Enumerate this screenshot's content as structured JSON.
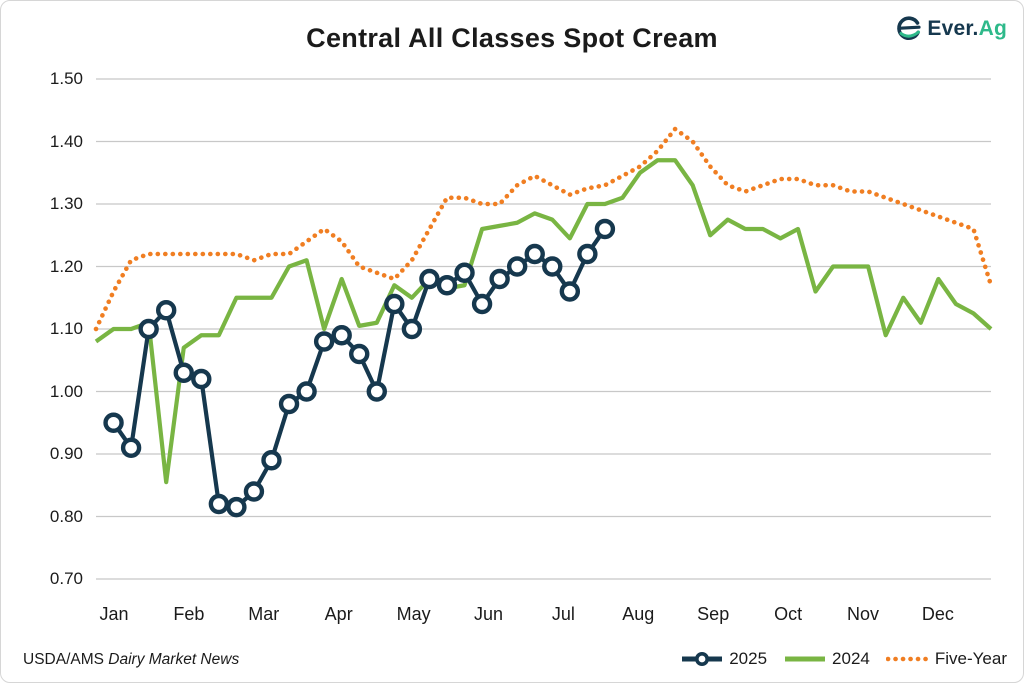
{
  "header": {
    "title": "Central All Classes Spot Cream",
    "logo": {
      "prefix": "Ever.",
      "suffix": "Ag",
      "navy": "#16384E",
      "teal": "#2EB98A"
    }
  },
  "footer": {
    "source_prefix": "USDA/AMS",
    "source_name": "Dairy Market News"
  },
  "colors": {
    "navy_2025": "#16384E",
    "green_2024": "#79B543",
    "orange_five_year": "#F07E22",
    "gridline": "#C8C8C8",
    "text": "#1B1B1B"
  },
  "chart_data": {
    "type": "line",
    "title": "Central All Classes Spot Cream",
    "xlabel": "",
    "ylabel": "",
    "ylim": [
      0.7,
      1.5
    ],
    "grid": "horizontal",
    "legend_position": "bottom-right",
    "y_ticks": [
      "1.50",
      "1.40",
      "1.30",
      "1.20",
      "1.10",
      "1.00",
      "0.90",
      "0.80",
      "0.70"
    ],
    "y_tick_values": [
      1.5,
      1.4,
      1.3,
      1.2,
      1.1,
      1.0,
      0.9,
      0.8,
      0.7
    ],
    "months": [
      "Jan",
      "Feb",
      "Mar",
      "Apr",
      "May",
      "Jun",
      "Jul",
      "Aug",
      "Sep",
      "Oct",
      "Nov",
      "Dec"
    ],
    "weeks_per_year": 52,
    "series": [
      {
        "name": "Five-Year",
        "style": "dotted",
        "marker": "none",
        "color": "#F07E22",
        "start_week": 0,
        "values": [
          1.1,
          1.16,
          1.21,
          1.22,
          1.22,
          1.22,
          1.22,
          1.22,
          1.22,
          1.21,
          1.22,
          1.22,
          1.24,
          1.26,
          1.24,
          1.2,
          1.19,
          1.18,
          1.21,
          1.26,
          1.31,
          1.31,
          1.3,
          1.3,
          1.33,
          1.345,
          1.33,
          1.315,
          1.325,
          1.33,
          1.345,
          1.36,
          1.385,
          1.42,
          1.4,
          1.36,
          1.33,
          1.32,
          1.33,
          1.34,
          1.34,
          1.33,
          1.33,
          1.32,
          1.32,
          1.31,
          1.3,
          1.29,
          1.28,
          1.27,
          1.26,
          1.17
        ]
      },
      {
        "name": "2024",
        "style": "solid",
        "marker": "none",
        "color": "#79B543",
        "start_week": 0,
        "values": [
          1.08,
          1.1,
          1.1,
          1.11,
          0.855,
          1.07,
          1.09,
          1.09,
          1.15,
          1.15,
          1.15,
          1.2,
          1.21,
          1.1,
          1.18,
          1.105,
          1.11,
          1.17,
          1.15,
          1.18,
          1.165,
          1.17,
          1.26,
          1.265,
          1.27,
          1.285,
          1.275,
          1.245,
          1.3,
          1.3,
          1.31,
          1.35,
          1.37,
          1.37,
          1.33,
          1.25,
          1.275,
          1.26,
          1.26,
          1.245,
          1.26,
          1.16,
          1.2,
          1.2,
          1.2,
          1.09,
          1.15,
          1.11,
          1.18,
          1.14,
          1.125,
          1.1
        ]
      },
      {
        "name": "2025",
        "style": "solid",
        "marker": "circle",
        "color": "#16384E",
        "start_week": 1,
        "values": [
          0.95,
          0.91,
          1.1,
          1.13,
          1.03,
          1.02,
          0.82,
          0.815,
          0.84,
          0.89,
          0.98,
          1.0,
          1.08,
          1.09,
          1.06,
          1.0,
          1.14,
          1.1,
          1.18,
          1.17,
          1.19,
          1.14,
          1.18,
          1.2,
          1.22,
          1.2,
          1.16,
          1.22,
          1.26
        ]
      }
    ]
  }
}
